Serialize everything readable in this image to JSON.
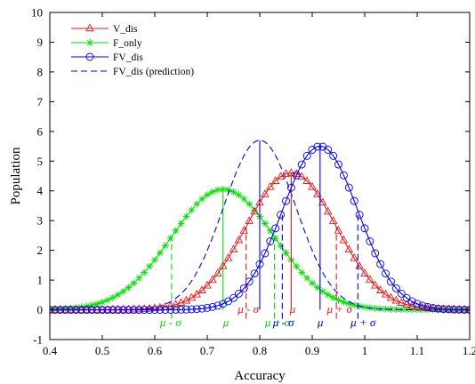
{
  "chart_data": {
    "type": "line",
    "xlabel": "Accuracy",
    "ylabel": "Population",
    "xlim": [
      0.4,
      1.2
    ],
    "ylim": [
      -1,
      10
    ],
    "xticks": [
      "0.4",
      "0.5",
      "0.6",
      "0.7",
      "0.8",
      "0.9",
      "1",
      "1.1",
      "1.2"
    ],
    "yticks": [
      "-1",
      "0",
      "1",
      "2",
      "3",
      "4",
      "5",
      "6",
      "7",
      "8",
      "9",
      "10"
    ],
    "legend_position": "top-left",
    "series": [
      {
        "name": "V_dis",
        "color": "#e41a1c",
        "marker": "triangle",
        "line": "solid",
        "mu": 0.86,
        "sigma": 0.086,
        "peak": 4.6,
        "mean_line_x": 0.86,
        "minus_sigma_x": 0.774,
        "plus_sigma_x": 0.946
      },
      {
        "name": "F_only",
        "color": "#00e000",
        "marker": "asterisk",
        "line": "solid",
        "mu": 0.73,
        "sigma": 0.098,
        "peak": 4.05,
        "mean_line_x": 0.73,
        "minus_sigma_x": 0.632,
        "plus_sigma_x": 0.828
      },
      {
        "name": "FV_dis",
        "color": "#0000ee",
        "marker": "circle",
        "line": "solid",
        "mu": 0.915,
        "sigma": 0.072,
        "peak": 5.5,
        "mean_line_x": 0.915,
        "minus_sigma_x": 0.843,
        "plus_sigma_x": 0.987
      },
      {
        "name": "FV_dis (prediction)",
        "color": "#0000ee",
        "marker": "none",
        "line": "dashed",
        "mu": 0.8,
        "sigma": 0.069,
        "peak": 5.7,
        "mean_line_x": 0.8
      }
    ],
    "annotations": [
      {
        "text": "μ - σ",
        "x": 0.61,
        "y": -0.55,
        "color": "#00e000"
      },
      {
        "text": "μ",
        "x": 0.73,
        "y": -0.55,
        "color": "#00e000"
      },
      {
        "text": "μ + σ",
        "x": 0.81,
        "y": -0.55,
        "color": "#00e000"
      },
      {
        "text": "μ - σ",
        "x": 0.758,
        "y": -0.1,
        "color": "#e41a1c"
      },
      {
        "text": "μ",
        "x": 0.857,
        "y": -0.1,
        "color": "#e41a1c"
      },
      {
        "text": "μ + σ",
        "x": 0.928,
        "y": -0.1,
        "color": "#e41a1c"
      },
      {
        "text": "μ - σ",
        "x": 0.825,
        "y": -0.55,
        "color": "#0000ee"
      },
      {
        "text": "μ",
        "x": 0.91,
        "y": -0.55,
        "color": "#0000ee"
      },
      {
        "text": "μ + σ",
        "x": 0.973,
        "y": -0.55,
        "color": "#0000ee"
      }
    ]
  }
}
